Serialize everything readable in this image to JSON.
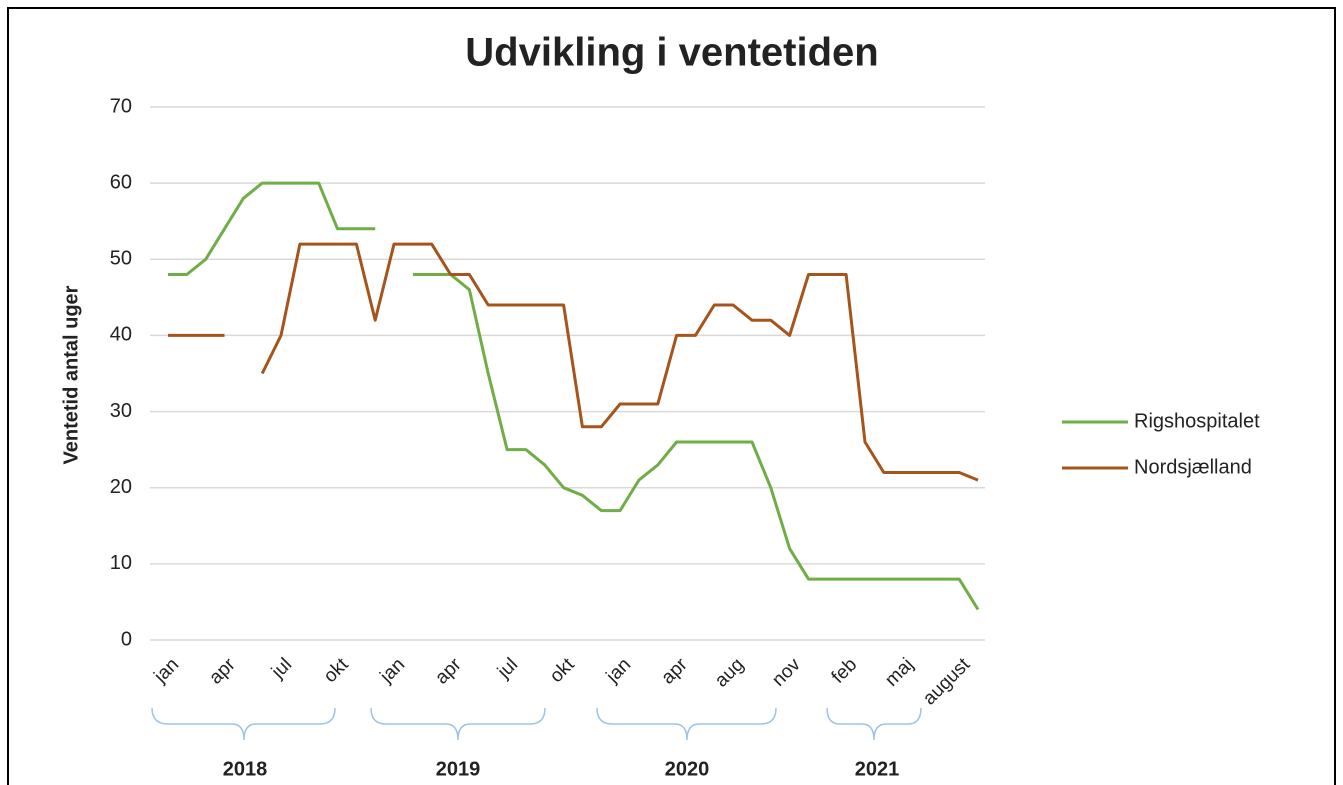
{
  "chart_data": {
    "type": "line",
    "title": "Udvikling i ventetiden",
    "y_label": "Ventetid antal uger",
    "categories": [
      "jan",
      null,
      null,
      "apr",
      null,
      null,
      "jul",
      null,
      null,
      "okt",
      null,
      null,
      "jan",
      null,
      null,
      "apr",
      null,
      null,
      "jul",
      null,
      null,
      "okt",
      null,
      null,
      "jan",
      null,
      null,
      "apr",
      null,
      null,
      "aug",
      null,
      null,
      "nov",
      null,
      null,
      "feb",
      null,
      null,
      "maj",
      null,
      null,
      "august",
      null
    ],
    "series": [
      {
        "name": "Rigshospitalet",
        "color": "#70ad47",
        "values": [
          48,
          48,
          50,
          54,
          58,
          60,
          60,
          60,
          60,
          54,
          54,
          54,
          null,
          48,
          48,
          48,
          46,
          35,
          25,
          25,
          23,
          20,
          19,
          17,
          17,
          21,
          23,
          26,
          26,
          26,
          26,
          26,
          20,
          12,
          8,
          8,
          8,
          8,
          8,
          8,
          8,
          8,
          8,
          4
        ]
      },
      {
        "name": "Nordsjælland",
        "color": "#a5541b",
        "values": [
          40,
          40,
          40,
          40,
          null,
          35,
          40,
          52,
          52,
          52,
          52,
          42,
          52,
          52,
          52,
          48,
          48,
          44,
          44,
          44,
          44,
          44,
          28,
          28,
          31,
          31,
          31,
          40,
          40,
          44,
          44,
          42,
          42,
          40,
          48,
          48,
          48,
          26,
          22,
          22,
          22,
          22,
          22,
          21
        ]
      }
    ],
    "year_labels": [
      "2018",
      "2019",
      "2020",
      "2021"
    ],
    "ylim": [
      0,
      70
    ],
    "yticks": [
      0,
      10,
      20,
      30,
      40,
      50,
      60,
      70
    ],
    "grid": true,
    "legend": "right"
  }
}
